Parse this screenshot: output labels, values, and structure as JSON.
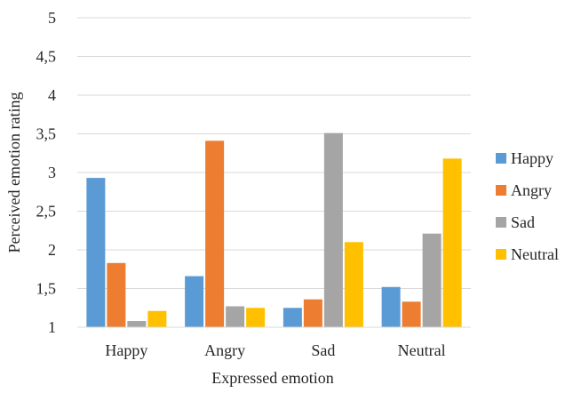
{
  "chart_data": {
    "type": "bar",
    "title": "",
    "xlabel": "Expressed emotion",
    "ylabel": "Perceived  emotion rating",
    "ylim": [
      1,
      5
    ],
    "yticks": [
      "1",
      "1,5",
      "2",
      "2,5",
      "3",
      "3,5",
      "4",
      "4,5",
      "5"
    ],
    "ytick_values": [
      1,
      1.5,
      2,
      2.5,
      3,
      3.5,
      4,
      4.5,
      5
    ],
    "grid": true,
    "legend_position": "right",
    "categories": [
      "Happy",
      "Angry",
      "Sad",
      "Neutral"
    ],
    "series": [
      {
        "name": "Happy",
        "color": "#5B9BD5",
        "values": [
          2.93,
          1.66,
          1.25,
          1.52
        ]
      },
      {
        "name": "Angry",
        "color": "#ED7D31",
        "values": [
          1.83,
          3.41,
          1.36,
          1.33
        ]
      },
      {
        "name": "Sad",
        "color": "#A5A5A5",
        "values": [
          1.08,
          1.27,
          3.51,
          2.21
        ]
      },
      {
        "name": "Neutral",
        "color": "#FFC000",
        "values": [
          1.21,
          1.25,
          2.1,
          3.18
        ]
      }
    ]
  }
}
